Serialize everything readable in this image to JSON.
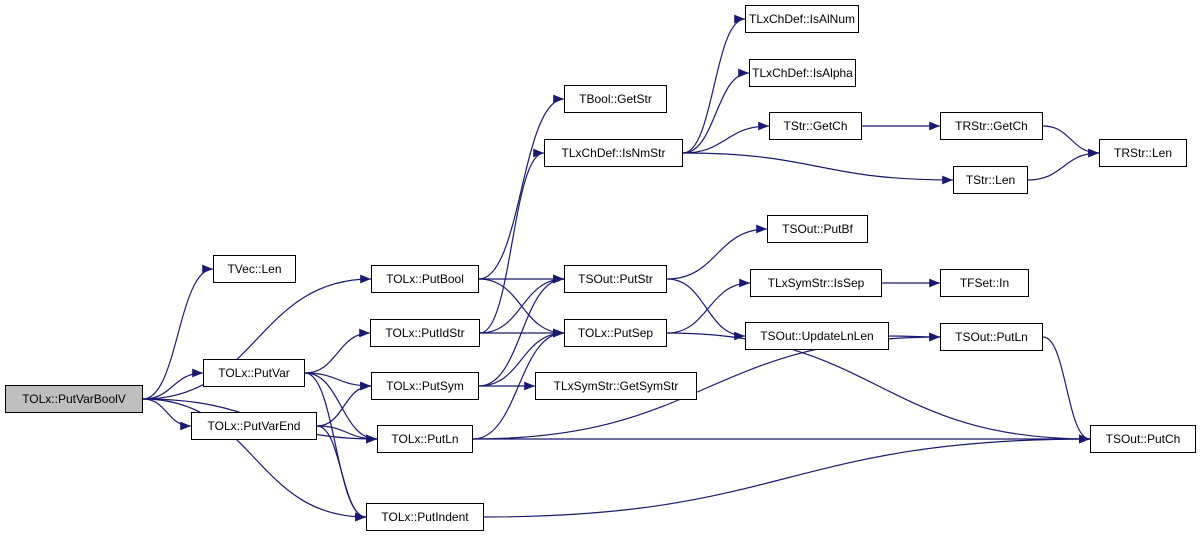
{
  "colors": {
    "edge": "#191970",
    "root_fill": "#bfbfbf",
    "node_border": "#000000"
  },
  "nodes": [
    {
      "id": "root",
      "label": "TOLx::PutVarBoolV",
      "root": true
    },
    {
      "id": "veclen",
      "label": "TVec::Len"
    },
    {
      "id": "putbool",
      "label": "TOLx::PutBool"
    },
    {
      "id": "putidstr",
      "label": "TOLx::PutIdStr"
    },
    {
      "id": "putvar",
      "label": "TOLx::PutVar"
    },
    {
      "id": "putsym",
      "label": "TOLx::PutSym"
    },
    {
      "id": "putvarend",
      "label": "TOLx::PutVarEnd"
    },
    {
      "id": "putln",
      "label": "TOLx::PutLn"
    },
    {
      "id": "putindent",
      "label": "TOLx::PutIndent"
    },
    {
      "id": "getstr",
      "label": "TBool::GetStr"
    },
    {
      "id": "isalnum",
      "label": "TLxChDef::IsAlNum"
    },
    {
      "id": "isalpha",
      "label": "TLxChDef::IsAlpha"
    },
    {
      "id": "isnmstr",
      "label": "TLxChDef::IsNmStr"
    },
    {
      "id": "strgetch",
      "label": "TStr::GetCh"
    },
    {
      "id": "rstrgetch",
      "label": "TRStr::GetCh"
    },
    {
      "id": "rstrlen",
      "label": "TRStr::Len"
    },
    {
      "id": "strlen",
      "label": "TStr::Len"
    },
    {
      "id": "putbf",
      "label": "TSOut::PutBf"
    },
    {
      "id": "putstr",
      "label": "TSOut::PutStr"
    },
    {
      "id": "issep",
      "label": "TLxSymStr::IsSep"
    },
    {
      "id": "fsetin",
      "label": "TFSet::In"
    },
    {
      "id": "putsep",
      "label": "TOLx::PutSep"
    },
    {
      "id": "updlnlen",
      "label": "TSOut::UpdateLnLen"
    },
    {
      "id": "soutputln",
      "label": "TSOut::PutLn"
    },
    {
      "id": "getsymstr",
      "label": "TLxSymStr::GetSymStr"
    },
    {
      "id": "putch",
      "label": "TSOut::PutCh"
    }
  ],
  "edges": [
    [
      "root",
      "veclen"
    ],
    [
      "root",
      "putbool"
    ],
    [
      "root",
      "putvar"
    ],
    [
      "root",
      "putvarend"
    ],
    [
      "root",
      "putln"
    ],
    [
      "root",
      "putindent"
    ],
    [
      "putbool",
      "getstr"
    ],
    [
      "putbool",
      "putstr"
    ],
    [
      "putbool",
      "putsep"
    ],
    [
      "putidstr",
      "isnmstr"
    ],
    [
      "putidstr",
      "putstr"
    ],
    [
      "putidstr",
      "putsep"
    ],
    [
      "putvar",
      "putidstr"
    ],
    [
      "putvar",
      "putsym"
    ],
    [
      "putvar",
      "putln"
    ],
    [
      "putvar",
      "putindent"
    ],
    [
      "putvarend",
      "putsym"
    ],
    [
      "putvarend",
      "putln"
    ],
    [
      "putvarend",
      "putindent"
    ],
    [
      "putsym",
      "putstr"
    ],
    [
      "putsym",
      "putsep"
    ],
    [
      "putsym",
      "getsymstr"
    ],
    [
      "putln",
      "putsep"
    ],
    [
      "putln",
      "soutputln"
    ],
    [
      "putln",
      "putch"
    ],
    [
      "putindent",
      "putch"
    ],
    [
      "putstr",
      "putbf"
    ],
    [
      "putstr",
      "updlnlen"
    ],
    [
      "putsep",
      "issep"
    ],
    [
      "putsep",
      "putch"
    ],
    [
      "isnmstr",
      "isalnum"
    ],
    [
      "isnmstr",
      "isalpha"
    ],
    [
      "isnmstr",
      "strgetch"
    ],
    [
      "isnmstr",
      "strlen"
    ],
    [
      "strgetch",
      "rstrgetch"
    ],
    [
      "rstrgetch",
      "rstrlen"
    ],
    [
      "strlen",
      "rstrlen"
    ],
    [
      "issep",
      "fsetin"
    ],
    [
      "updlnlen",
      "soutputln"
    ],
    [
      "soutputln",
      "putch"
    ]
  ]
}
